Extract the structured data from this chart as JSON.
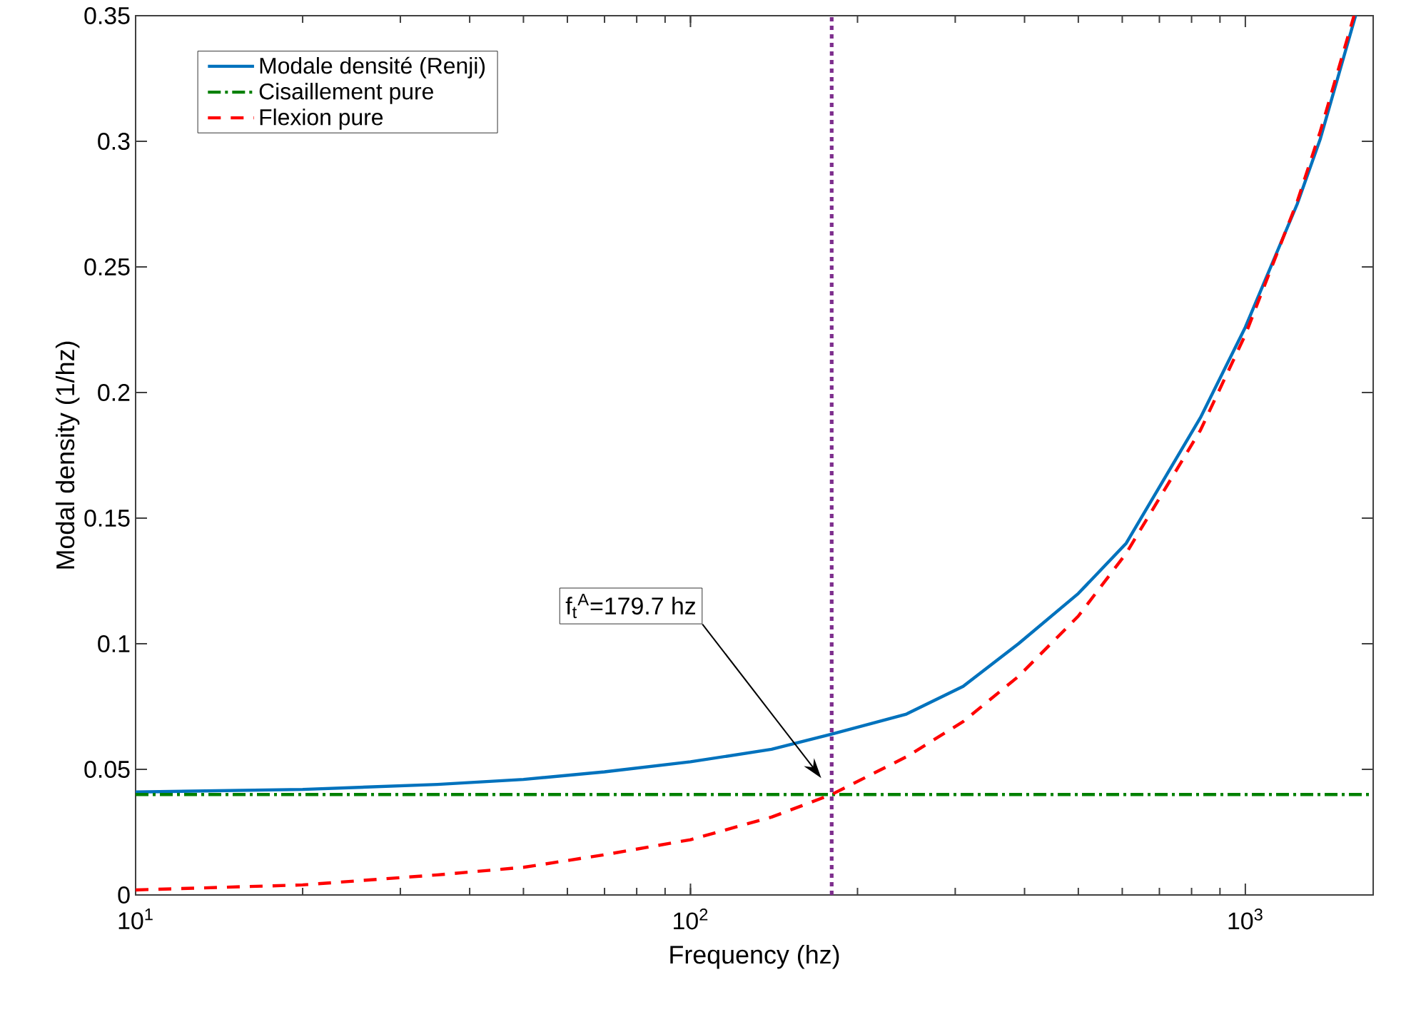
{
  "chart_data": {
    "type": "line",
    "xlabel": "Frequency (hz)",
    "ylabel": "Modal density (1/hz)",
    "log": "x",
    "xlim": [
      10,
      1700
    ],
    "ylim": [
      0,
      0.35
    ],
    "xticks": [
      {
        "value": 10,
        "label": "10$^{1}$"
      },
      {
        "value": 100,
        "label": "10$^{2}$"
      },
      {
        "value": 1000,
        "label": "10$^{3}$"
      }
    ],
    "yticks": [
      0,
      0.05,
      0.1,
      0.15,
      0.2,
      0.25,
      0.3,
      0.35
    ],
    "series": [
      {
        "name": "Modale densité (Renji)",
        "color": "#0072bd",
        "line_style": "solid",
        "x": [
          10,
          20,
          35,
          50,
          70,
          100,
          140,
          179.7,
          245,
          310,
          390,
          500,
          610,
          830,
          1000,
          1240,
          1365,
          1580
        ],
        "values": [
          0.041,
          0.042,
          0.044,
          0.046,
          0.049,
          0.053,
          0.058,
          0.064,
          0.072,
          0.083,
          0.1,
          0.12,
          0.14,
          0.19,
          0.226,
          0.275,
          0.301,
          0.35
        ]
      },
      {
        "name": "Cisaillement pure",
        "color": "#008000",
        "line_style": "dashdot",
        "x": [
          10,
          1700
        ],
        "values": [
          0.04,
          0.04
        ]
      },
      {
        "name": "Flexion pure",
        "color": "#ff0000",
        "line_style": "dashed",
        "x": [
          10,
          20,
          35,
          50,
          70,
          100,
          140,
          179.7,
          245,
          310,
          390,
          500,
          610,
          830,
          1000,
          1240,
          1365,
          1570
        ],
        "values": [
          0.002,
          0.004,
          0.008,
          0.011,
          0.016,
          0.022,
          0.031,
          0.04,
          0.055,
          0.069,
          0.087,
          0.111,
          0.136,
          0.185,
          0.223,
          0.276,
          0.304,
          0.35
        ]
      }
    ],
    "ref_lines": [
      {
        "axis": "x",
        "value": 179.7,
        "color": "#7e2f8e",
        "line_style": "dotted"
      }
    ],
    "annotations": [
      "f$_{t}$$^{A}$=179.7 hz"
    ],
    "legend": "top left",
    "grid": false
  }
}
